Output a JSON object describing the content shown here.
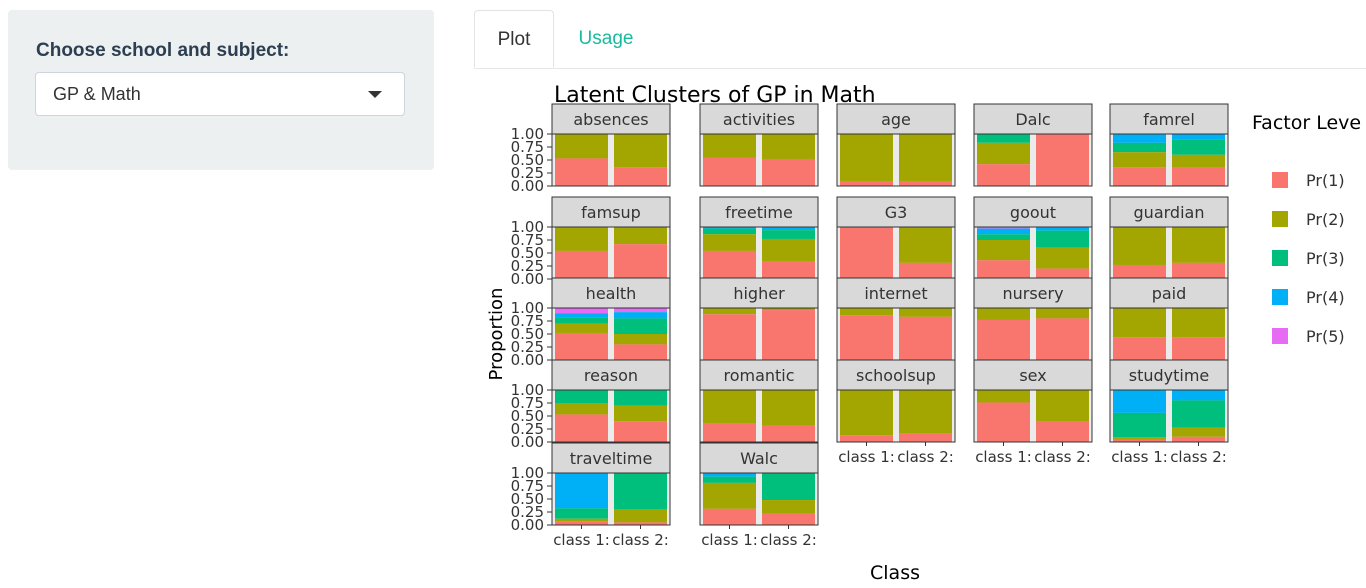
{
  "sidebar": {
    "label": "Choose school and subject:",
    "select_value": "GP & Math"
  },
  "tabs": [
    {
      "label": "Plot",
      "active": true
    },
    {
      "label": "Usage",
      "active": false
    }
  ],
  "accent_color": "#18bc9c",
  "chart_data": {
    "type": "bar",
    "title": "Latent Clusters of GP in Math",
    "xlabel": "Class",
    "ylabel": "Proportion",
    "ylim": [
      0,
      1
    ],
    "yticks": [
      "0.00",
      "0.25",
      "0.50",
      "0.75",
      "1.00"
    ],
    "categories": [
      "class 1:",
      "class 2:"
    ],
    "legend": {
      "title": "Factor Leve",
      "position": "right",
      "items": [
        {
          "label": "Pr(1)",
          "color": "#F8766D"
        },
        {
          "label": "Pr(2)",
          "color": "#A3A500"
        },
        {
          "label": "Pr(3)",
          "color": "#00BF7D"
        },
        {
          "label": "Pr(4)",
          "color": "#00B0F6"
        },
        {
          "label": "Pr(5)",
          "color": "#E76BF3"
        }
      ]
    },
    "facets": [
      {
        "name": "absences",
        "class1": [
          0.47,
          0.53
        ],
        "class2": [
          0.64,
          0.36
        ]
      },
      {
        "name": "activities",
        "class1": [
          0.46,
          0.54
        ],
        "class2": [
          0.48,
          0.52
        ]
      },
      {
        "name": "age",
        "class1": [
          0.92,
          0.08
        ],
        "class2": [
          0.92,
          0.08
        ]
      },
      {
        "name": "Dalc",
        "class1": [
          0.17,
          0.41,
          0.42
        ],
        "class2": [
          1.0
        ]
      },
      {
        "name": "famrel",
        "class1": [
          0.17,
          0.18,
          0.29,
          0.36
        ],
        "class2": [
          0.1,
          0.3,
          0.25,
          0.35
        ]
      },
      {
        "name": "famsup",
        "class1": [
          0.46,
          0.54
        ],
        "class2": [
          0.33,
          0.67
        ]
      },
      {
        "name": "freetime",
        "class1": [
          0.03,
          0.11,
          0.32,
          0.54
        ],
        "class2": [
          0.06,
          0.17,
          0.44,
          0.33
        ]
      },
      {
        "name": "G3",
        "class1": [
          1.0
        ],
        "class2": [
          0.69,
          0.31
        ]
      },
      {
        "name": "goout",
        "class1": [
          0.03,
          0.11,
          0.11,
          0.39,
          0.36
        ],
        "class2": [
          0.07,
          0.33,
          0.4,
          0.2
        ]
      },
      {
        "name": "guardian",
        "class1": [
          0.73,
          0.27
        ],
        "class2": [
          0.69,
          0.31
        ]
      },
      {
        "name": "health",
        "class1": [
          0.1,
          0.08,
          0.12,
          0.18,
          0.52
        ],
        "class2": [
          0.08,
          0.12,
          0.3,
          0.2,
          0.3
        ]
      },
      {
        "name": "higher",
        "class1": [
          0.12,
          0.88
        ],
        "class2": [
          0.04,
          0.96
        ]
      },
      {
        "name": "internet",
        "class1": [
          0.14,
          0.86
        ],
        "class2": [
          0.17,
          0.83
        ]
      },
      {
        "name": "nursery",
        "class1": [
          0.23,
          0.77
        ],
        "class2": [
          0.2,
          0.8
        ]
      },
      {
        "name": "paid",
        "class1": [
          0.56,
          0.44
        ],
        "class2": [
          0.56,
          0.44
        ]
      },
      {
        "name": "reason",
        "class1": [
          0.25,
          0.22,
          0.53
        ],
        "class2": [
          0.3,
          0.3,
          0.4
        ]
      },
      {
        "name": "romantic",
        "class1": [
          0.65,
          0.35
        ],
        "class2": [
          0.69,
          0.31
        ]
      },
      {
        "name": "schoolsup",
        "class1": [
          0.87,
          0.13
        ],
        "class2": [
          0.84,
          0.16
        ]
      },
      {
        "name": "sex",
        "class1": [
          0.24,
          0.76
        ],
        "class2": [
          0.61,
          0.39
        ]
      },
      {
        "name": "studytime",
        "class1": [
          0.44,
          0.47,
          0.05,
          0.04
        ],
        "class2": [
          0.2,
          0.52,
          0.18,
          0.1
        ]
      },
      {
        "name": "traveltime",
        "class1": [
          0.68,
          0.2,
          0.05,
          0.07
        ],
        "class2": [
          0.7,
          0.25,
          0.05
        ]
      },
      {
        "name": "Walc",
        "class1": [
          0.07,
          0.12,
          0.5,
          0.31
        ],
        "class2": [
          0.52,
          0.26,
          0.22
        ]
      }
    ]
  }
}
